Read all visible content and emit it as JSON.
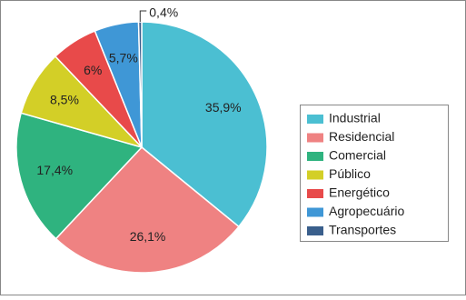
{
  "chart_data": {
    "type": "pie",
    "categories": [
      "Industrial",
      "Residencial",
      "Comercial",
      "Público",
      "Energético",
      "Agropecuário",
      "Transportes"
    ],
    "values": [
      35.9,
      26.1,
      17.4,
      8.5,
      6,
      5.7,
      0.4
    ],
    "value_labels": [
      "35,9%",
      "26,1%",
      "17,4%",
      "8,5%",
      "6%",
      "5,7%",
      "0,4%"
    ],
    "colors": [
      "#4bbfd2",
      "#ef8282",
      "#2fb37f",
      "#d3cf27",
      "#e84a4a",
      "#3f97d6",
      "#3a5f8c"
    ],
    "legend": "right"
  }
}
